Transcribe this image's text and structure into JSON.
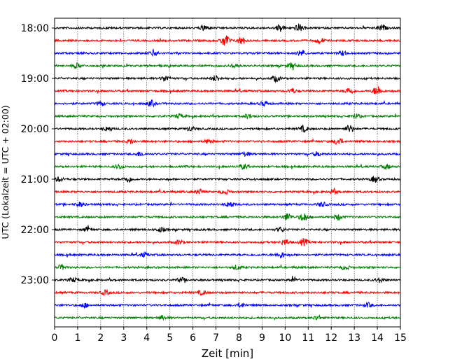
{
  "chart_data": {
    "type": "line",
    "title": "",
    "xlabel": "Zeit  [min]",
    "ylabel": "UTC (Lokalzeit = UTC + 02:00)",
    "xlim": [
      0,
      15
    ],
    "x_ticks": [
      0,
      1,
      2,
      3,
      4,
      5,
      6,
      7,
      8,
      9,
      10,
      11,
      12,
      13,
      14,
      15
    ],
    "grid": "vertical dotted at each minute",
    "y_tick_labels": [
      "18:00",
      "19:00",
      "20:00",
      "21:00",
      "22:00",
      "23:00"
    ],
    "trace_interval_min": 15,
    "colors_cycle": [
      "#000000",
      "#ff0000",
      "#0000ff",
      "#008000"
    ],
    "series": [
      {
        "start": "18:00",
        "color": "#000000",
        "events": [
          {
            "t": 6.5,
            "amp": 4
          },
          {
            "t": 9.8,
            "amp": 5
          },
          {
            "t": 10.6,
            "amp": 5
          },
          {
            "t": 14.2,
            "amp": 4
          }
        ]
      },
      {
        "start": "18:15",
        "color": "#ff0000",
        "events": [
          {
            "t": 7.4,
            "amp": 9
          },
          {
            "t": 8.1,
            "amp": 5
          },
          {
            "t": 11.5,
            "amp": 4
          }
        ]
      },
      {
        "start": "18:30",
        "color": "#0000ff",
        "events": [
          {
            "t": 4.3,
            "amp": 4
          },
          {
            "t": 10.7,
            "amp": 4
          },
          {
            "t": 12.5,
            "amp": 3
          }
        ]
      },
      {
        "start": "18:45",
        "color": "#008000",
        "events": [
          {
            "t": 1.0,
            "amp": 3
          },
          {
            "t": 7.8,
            "amp": 3
          },
          {
            "t": 10.3,
            "amp": 4
          }
        ]
      },
      {
        "start": "19:00",
        "color": "#000000",
        "events": [
          {
            "t": 4.8,
            "amp": 4
          },
          {
            "t": 7.0,
            "amp": 4
          },
          {
            "t": 9.6,
            "amp": 4
          }
        ]
      },
      {
        "start": "19:15",
        "color": "#ff0000",
        "events": [
          {
            "t": 10.3,
            "amp": 3
          },
          {
            "t": 12.8,
            "amp": 5
          },
          {
            "t": 14.0,
            "amp": 7
          }
        ]
      },
      {
        "start": "19:30",
        "color": "#0000ff",
        "events": [
          {
            "t": 2.0,
            "amp": 3
          },
          {
            "t": 4.2,
            "amp": 4
          },
          {
            "t": 9.1,
            "amp": 3
          }
        ]
      },
      {
        "start": "19:45",
        "color": "#008000",
        "events": [
          {
            "t": 5.4,
            "amp": 3
          },
          {
            "t": 8.4,
            "amp": 3
          },
          {
            "t": 13.1,
            "amp": 3
          }
        ]
      },
      {
        "start": "20:00",
        "color": "#000000",
        "events": [
          {
            "t": 2.3,
            "amp": 3
          },
          {
            "t": 5.9,
            "amp": 3
          },
          {
            "t": 10.8,
            "amp": 4
          },
          {
            "t": 12.8,
            "amp": 5
          }
        ]
      },
      {
        "start": "20:15",
        "color": "#ff0000",
        "events": [
          {
            "t": 3.3,
            "amp": 3
          },
          {
            "t": 6.7,
            "amp": 3
          },
          {
            "t": 12.3,
            "amp": 5
          }
        ]
      },
      {
        "start": "20:30",
        "color": "#0000ff",
        "events": [
          {
            "t": 3.7,
            "amp": 3
          },
          {
            "t": 8.3,
            "amp": 3
          },
          {
            "t": 11.4,
            "amp": 3
          }
        ]
      },
      {
        "start": "20:45",
        "color": "#008000",
        "events": [
          {
            "t": 2.8,
            "amp": 3
          },
          {
            "t": 8.2,
            "amp": 3
          },
          {
            "t": 14.4,
            "amp": 3
          }
        ]
      },
      {
        "start": "21:00",
        "color": "#000000",
        "events": [
          {
            "t": 0.2,
            "amp": 3
          },
          {
            "t": 3.2,
            "amp": 4
          },
          {
            "t": 13.9,
            "amp": 4
          }
        ]
      },
      {
        "start": "21:15",
        "color": "#ff0000",
        "events": [
          {
            "t": 6.3,
            "amp": 3
          },
          {
            "t": 7.4,
            "amp": 3
          },
          {
            "t": 12.1,
            "amp": 3
          }
        ]
      },
      {
        "start": "21:30",
        "color": "#0000ff",
        "events": [
          {
            "t": 1.1,
            "amp": 3
          },
          {
            "t": 7.6,
            "amp": 4
          },
          {
            "t": 11.6,
            "amp": 3
          }
        ]
      },
      {
        "start": "21:45",
        "color": "#008000",
        "events": [
          {
            "t": 10.1,
            "amp": 5
          },
          {
            "t": 10.8,
            "amp": 6
          },
          {
            "t": 12.3,
            "amp": 4
          }
        ]
      },
      {
        "start": "22:00",
        "color": "#000000",
        "events": [
          {
            "t": 1.4,
            "amp": 3
          },
          {
            "t": 4.6,
            "amp": 3
          },
          {
            "t": 9.8,
            "amp": 3
          }
        ]
      },
      {
        "start": "22:15",
        "color": "#ff0000",
        "events": [
          {
            "t": 5.4,
            "amp": 3
          },
          {
            "t": 10.0,
            "amp": 4
          },
          {
            "t": 10.8,
            "amp": 5
          }
        ]
      },
      {
        "start": "22:30",
        "color": "#0000ff",
        "events": [
          {
            "t": 3.9,
            "amp": 3
          },
          {
            "t": 9.8,
            "amp": 4
          }
        ]
      },
      {
        "start": "22:45",
        "color": "#008000",
        "events": [
          {
            "t": 0.3,
            "amp": 3
          },
          {
            "t": 7.9,
            "amp": 3
          },
          {
            "t": 12.6,
            "amp": 3
          }
        ]
      },
      {
        "start": "23:00",
        "color": "#000000",
        "events": [
          {
            "t": 0.8,
            "amp": 3
          },
          {
            "t": 5.5,
            "amp": 3
          },
          {
            "t": 10.4,
            "amp": 3
          },
          {
            "t": 14.1,
            "amp": 3
          }
        ]
      },
      {
        "start": "23:15",
        "color": "#ff0000",
        "events": [
          {
            "t": 2.2,
            "amp": 3
          },
          {
            "t": 6.4,
            "amp": 3
          }
        ]
      },
      {
        "start": "23:30",
        "color": "#0000ff",
        "events": [
          {
            "t": 1.3,
            "amp": 3
          },
          {
            "t": 8.1,
            "amp": 3
          },
          {
            "t": 13.6,
            "amp": 3
          }
        ]
      },
      {
        "start": "23:45",
        "color": "#008000",
        "events": [
          {
            "t": 4.7,
            "amp": 3
          },
          {
            "t": 11.4,
            "amp": 3
          }
        ]
      }
    ]
  }
}
